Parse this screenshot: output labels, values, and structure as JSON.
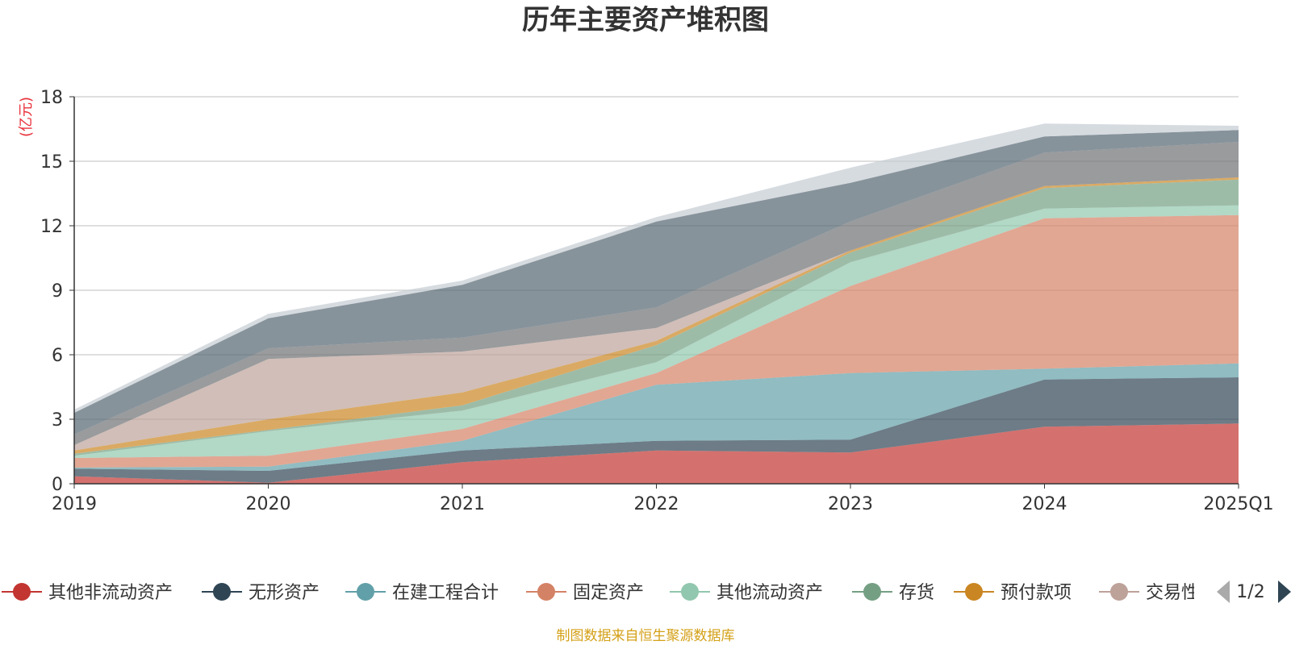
{
  "chart_data": {
    "type": "area",
    "stacked": true,
    "title": "历年主要资产堆积图",
    "ylabel": "亿元",
    "ylim": [
      0,
      18
    ],
    "yticks": [
      0,
      3,
      6,
      9,
      12,
      15,
      18
    ],
    "grid": true,
    "categories": [
      "2019",
      "2020",
      "2021",
      "2022",
      "2023",
      "2024",
      "2025Q1"
    ],
    "series": [
      {
        "name": "其他非流动资产",
        "color": "#c23531",
        "values": [
          0.35,
          0.05,
          1.0,
          1.55,
          1.45,
          2.65,
          2.8
        ]
      },
      {
        "name": "无形资产",
        "color": "#2f4554",
        "values": [
          0.35,
          0.55,
          0.55,
          0.45,
          0.6,
          2.2,
          2.15
        ]
      },
      {
        "name": "在建工程合计",
        "color": "#61a0a8",
        "values": [
          0.05,
          0.2,
          0.45,
          2.6,
          3.1,
          0.5,
          0.65
        ]
      },
      {
        "name": "固定资产",
        "color": "#d48265",
        "values": [
          0.45,
          0.5,
          0.55,
          0.55,
          4.05,
          7.0,
          6.9
        ]
      },
      {
        "name": "其他流动资产",
        "color": "#91c7ae",
        "values": [
          0.1,
          1.15,
          0.85,
          0.5,
          1.1,
          0.45,
          0.45
        ]
      },
      {
        "name": "存货",
        "color": "#749f83",
        "values": [
          0.1,
          0.05,
          0.25,
          0.8,
          0.45,
          0.95,
          1.2
        ]
      },
      {
        "name": "预付款项",
        "color": "#ca8622",
        "values": [
          0.15,
          0.5,
          0.6,
          0.2,
          0.1,
          0.1,
          0.1
        ]
      },
      {
        "name": "交易性金融资产",
        "color": "#bda29a",
        "values": [
          0.25,
          2.8,
          1.9,
          0.6,
          0.0,
          0.0,
          0.0
        ]
      },
      {
        "name": "",
        "color": "#6e7074",
        "values": [
          0.5,
          0.5,
          0.65,
          0.95,
          1.35,
          1.55,
          1.65
        ]
      },
      {
        "name": "",
        "color": "#546570",
        "values": [
          1.0,
          1.4,
          2.45,
          4.0,
          1.8,
          0.75,
          0.55
        ]
      },
      {
        "name": "",
        "color": "#c4ccd3",
        "values": [
          0.15,
          0.2,
          0.2,
          0.2,
          0.7,
          0.6,
          0.2
        ]
      }
    ]
  },
  "ui": {
    "unit_label": "(亿元)",
    "page_indicator": "1/2",
    "source_note": "制图数据来自恒生聚源数据库"
  }
}
